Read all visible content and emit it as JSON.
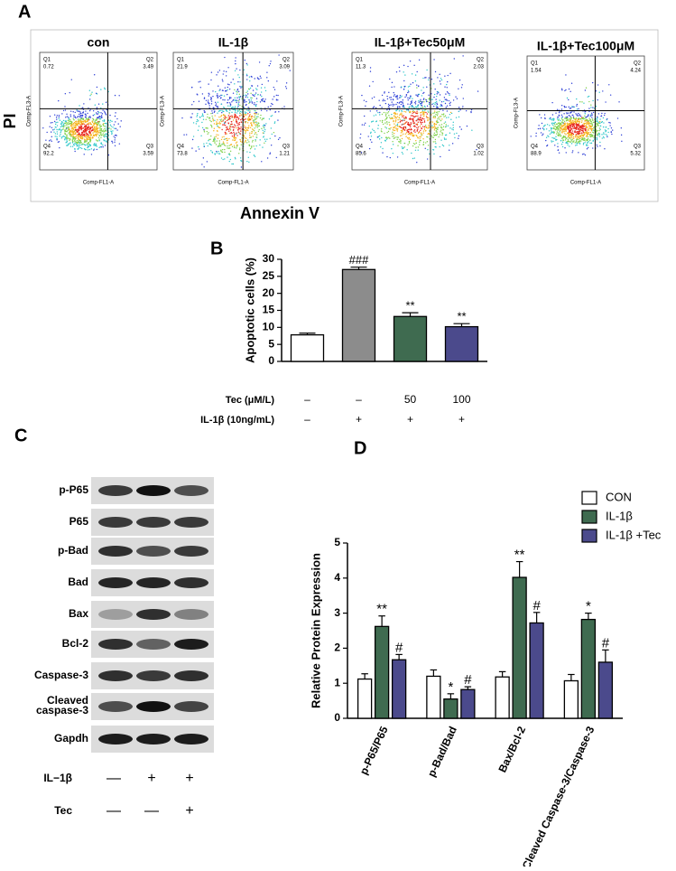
{
  "panels": {
    "A": "A",
    "B": "B",
    "C": "C",
    "D": "D"
  },
  "flow": {
    "y_label": "PI",
    "x_label": "Annexin V",
    "plot_y_label": "Comp-FL3-A",
    "plot_x_label": "Comp-FL1-A",
    "plots": [
      {
        "title": "con",
        "quadrants": [
          {
            "name": "Q1",
            "value": 0.72
          },
          {
            "name": "Q2",
            "value": 3.49
          },
          {
            "name": "Q3",
            "value": 3.59
          },
          {
            "name": "Q4",
            "value": 92.2
          }
        ]
      },
      {
        "title": "IL-1β",
        "quadrants": [
          {
            "name": "Q1",
            "value": 21.9
          },
          {
            "name": "Q2",
            "value": 3.09
          },
          {
            "name": "Q3",
            "value": 1.21
          },
          {
            "name": "Q4",
            "value": 73.8
          }
        ]
      },
      {
        "title": "IL-1β+Tec50μM",
        "quadrants": [
          {
            "name": "Q1",
            "value": 11.3
          },
          {
            "name": "Q2",
            "value": 2.03
          },
          {
            "name": "Q3",
            "value": 1.02
          },
          {
            "name": "Q4",
            "value": 85.6
          }
        ]
      },
      {
        "title": "IL-1β+Tec100μM",
        "quadrants": [
          {
            "name": "Q1",
            "value": 1.54
          },
          {
            "name": "Q2",
            "value": 4.24
          },
          {
            "name": "Q3",
            "value": 5.32
          },
          {
            "name": "Q4",
            "value": 88.9
          }
        ]
      }
    ]
  },
  "blot": {
    "rows": [
      "p-P65",
      "P65",
      "p-Bad",
      "Bad",
      "Bax",
      "Bcl-2",
      "Caspase-3",
      [
        "Cleaved",
        "caspase-3"
      ],
      "Gapdh"
    ],
    "treatments": [
      {
        "label": "IL−1β",
        "values": [
          "—",
          "+",
          "+"
        ]
      },
      {
        "label": "Tec",
        "values": [
          "—",
          "—",
          "+"
        ]
      }
    ]
  },
  "chart_data": [
    {
      "type": "bar",
      "ylabel": "Apoptotic cells (%)",
      "values": [
        7.8,
        27,
        13.2,
        10.2
      ],
      "errors": [
        0.5,
        0.7,
        1.1,
        0.9
      ],
      "colors": [
        "#ffffff",
        "#8c8c8c",
        "#3f6b50",
        "#4b4a8c"
      ],
      "annotations": [
        null,
        "###",
        "**",
        "**"
      ],
      "ylim": [
        0,
        30
      ],
      "yticks": [
        0,
        5,
        10,
        15,
        20,
        25,
        30
      ],
      "treatments": [
        {
          "label": "Tec  (μM/L)",
          "values": [
            "–",
            "–",
            50,
            100
          ]
        },
        {
          "label": "IL-1β  (10ng/mL)",
          "values": [
            "–",
            "+",
            "+",
            "+"
          ]
        }
      ]
    },
    {
      "type": "grouped_bar",
      "ylabel": "Relative Protein Expression",
      "categories": [
        "p-P65/P65",
        "p-Bad/Bad",
        "Bax/Bcl-2",
        "Cleaved Caspase-3/Caspase-3"
      ],
      "series": [
        {
          "name": "CON",
          "color": "#ffffff",
          "values": [
            1.12,
            1.2,
            1.18,
            1.07
          ],
          "errors": [
            0.15,
            0.18,
            0.15,
            0.18
          ],
          "annotations": [
            null,
            null,
            null,
            null
          ]
        },
        {
          "name": "IL-1β",
          "color": "#3f6b50",
          "values": [
            2.62,
            0.55,
            4.02,
            2.82
          ],
          "errors": [
            0.3,
            0.15,
            0.45,
            0.18
          ],
          "annotations": [
            "**",
            "*",
            "**",
            "*"
          ]
        },
        {
          "name": "IL-1β +Tec",
          "color": "#4b4a8c",
          "values": [
            1.67,
            0.82,
            2.72,
            1.6
          ],
          "errors": [
            0.15,
            0.08,
            0.3,
            0.35
          ],
          "annotations": [
            "#",
            "#",
            "#",
            "#"
          ]
        }
      ],
      "ylim": [
        0,
        5
      ],
      "yticks": [
        0,
        1,
        2,
        3,
        4,
        5
      ],
      "legend": "upper right"
    }
  ]
}
